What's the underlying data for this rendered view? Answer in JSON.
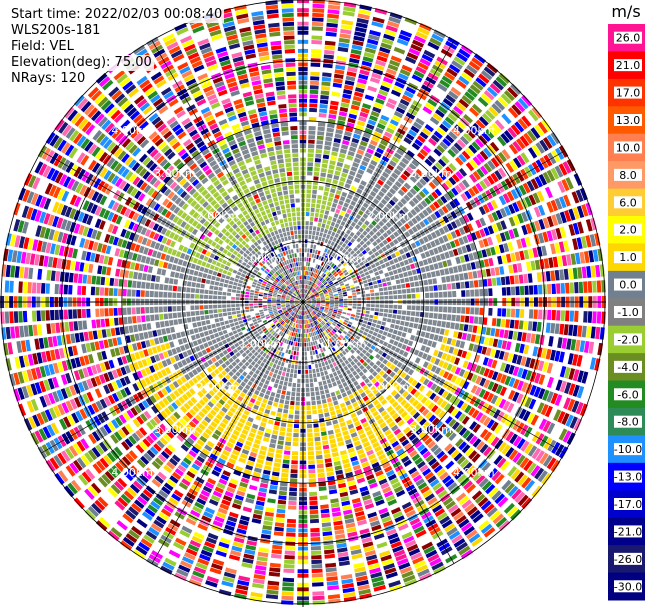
{
  "header": {
    "start_time": "Start time: 2022/02/03 00:08:40",
    "instrument": "WLS200s-181",
    "field": "Field: VEL",
    "elevation": "Elevation(deg): 75.00",
    "nrays": "NRays: 120"
  },
  "chart_data": {
    "type": "heatmap",
    "projection": "polar-ppi",
    "field": "VEL",
    "nrays": 120,
    "elevation_deg": 75.0,
    "max_range_km": 5.0,
    "range_rings_km": [
      1.0,
      2.0,
      3.0,
      4.0,
      5.0
    ],
    "ring_labels": [
      "1.00km",
      "2.00km",
      "3.00km",
      "4.00km"
    ],
    "colorbar": {
      "unit": "m/s",
      "tick_labels": [
        "26.0",
        "21.0",
        "17.0",
        "13.0",
        "10.0",
        "8.0",
        "6.0",
        "2.0",
        "1.0",
        "0.0",
        "-1.0",
        "-2.0",
        "-4.0",
        "-6.0",
        "-8.0",
        "-10.0",
        "-13.0",
        "-17.0",
        "-21.0",
        "-26.0",
        "-30.0"
      ],
      "colors": [
        "#ff1493",
        "#ff0000",
        "#ff3300",
        "#ff5a00",
        "#ff7f50",
        "#ff9966",
        "#ffcc33",
        "#ffff00",
        "#ffd700",
        "#708090",
        "#808080",
        "#9acd32",
        "#6b8e23",
        "#228b22",
        "#2e8b57",
        "#1e90ff",
        "#0000ff",
        "#0000cd",
        "#00008b",
        "#191970",
        "#000080"
      ]
    },
    "palette_noise": [
      "#ff1493",
      "#ff0000",
      "#ff69b4",
      "#ff00ff",
      "#ffd700",
      "#ffff00",
      "#000080",
      "#0000ff",
      "#191970",
      "#228b22",
      "#9acd32",
      "#ff7f50",
      "#ff4500",
      "#1e90ff",
      "#708090",
      "#ffffff",
      "#00008b",
      "#ff3300",
      "#8b0000",
      "#6b8e23"
    ],
    "zero_color": "#7f8790",
    "light_green": "#a2cb3c",
    "yellow": "#ffd700",
    "grid_color": "#000000"
  }
}
